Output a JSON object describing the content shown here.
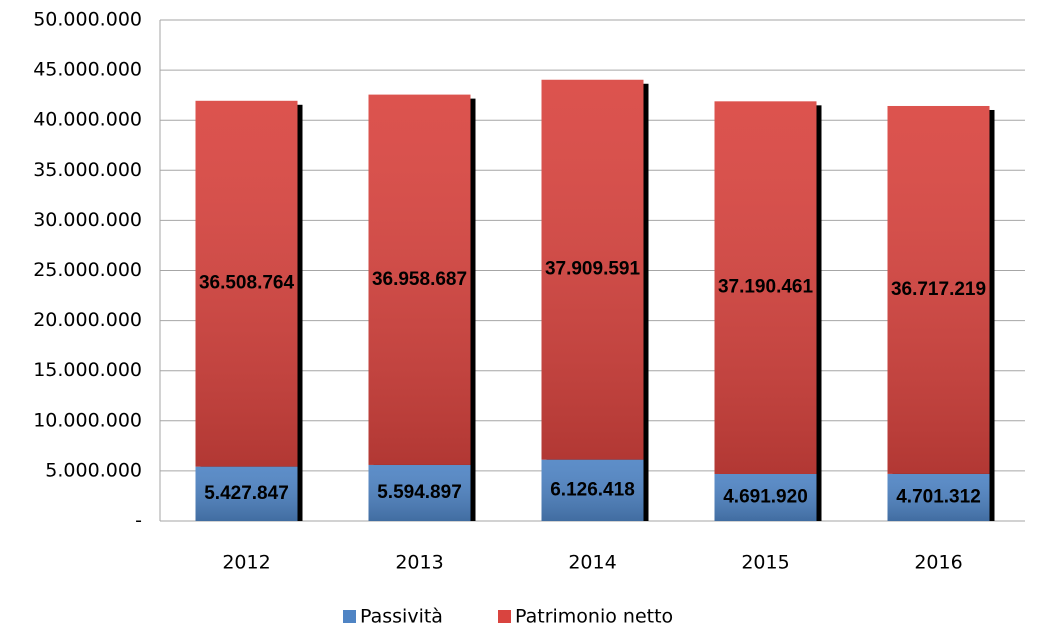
{
  "chart_data": {
    "type": "stacked_bar",
    "categories": [
      "2012",
      "2013",
      "2014",
      "2015",
      "2016"
    ],
    "series": [
      {
        "name": "Passività",
        "color": "#4f84c4",
        "values": [
          5427847,
          5594897,
          6126418,
          4691920,
          4701312
        ],
        "value_labels": [
          "5.427.847",
          "5.594.897",
          "6.126.418",
          "4.691.920",
          "4.701.312"
        ]
      },
      {
        "name": "Patrimonio netto",
        "color": "#d9443f",
        "values": [
          36508764,
          36958687,
          37909591,
          37190461,
          36717219
        ],
        "value_labels": [
          "36.508.764",
          "36.958.687",
          "37.909.591",
          "37.190.461",
          "36.717.219"
        ]
      }
    ],
    "ylim": [
      0,
      50000000
    ],
    "yticks": [
      {
        "value": 0,
        "label": "-"
      },
      {
        "value": 5000000,
        "label": "5.000.000"
      },
      {
        "value": 10000000,
        "label": "10.000.000"
      },
      {
        "value": 15000000,
        "label": "15.000.000"
      },
      {
        "value": 20000000,
        "label": "20.000.000"
      },
      {
        "value": 25000000,
        "label": "25.000.000"
      },
      {
        "value": 30000000,
        "label": "30.000.000"
      },
      {
        "value": 35000000,
        "label": "35.000.000"
      },
      {
        "value": 40000000,
        "label": "40.000.000"
      },
      {
        "value": 45000000,
        "label": "45.000.000"
      },
      {
        "value": 50000000,
        "label": "50.000.000"
      }
    ],
    "grid": true,
    "legend": "bottom"
  }
}
